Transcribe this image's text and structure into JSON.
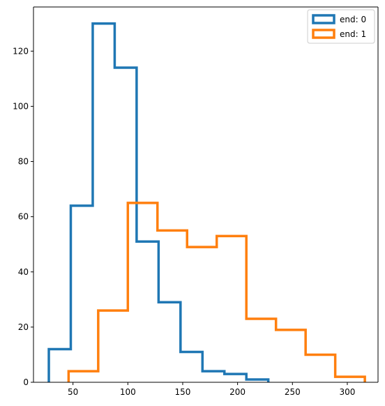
{
  "chart_data": {
    "type": "histogram",
    "xlim": [
      14,
      328
    ],
    "ylim": [
      0,
      136
    ],
    "grid": false,
    "legend_position": "top-right",
    "x_ticks": [
      50,
      100,
      150,
      200,
      250,
      300
    ],
    "y_ticks": [
      0,
      20,
      40,
      60,
      80,
      100,
      120
    ],
    "series": [
      {
        "name": "end: 0",
        "color": "#1f77b4",
        "bin_edges": [
          28,
          48,
          68,
          88,
          108,
          128,
          148,
          168,
          188,
          208,
          228
        ],
        "counts": [
          12,
          64,
          130,
          114,
          51,
          29,
          11,
          4,
          3,
          1
        ]
      },
      {
        "name": "end: 1",
        "color": "#ff7f0e",
        "bin_edges": [
          46,
          73,
          100,
          127,
          154,
          181,
          208,
          235,
          262,
          289,
          316
        ],
        "counts": [
          4,
          26,
          65,
          55,
          49,
          53,
          23,
          19,
          10,
          2
        ]
      }
    ]
  }
}
